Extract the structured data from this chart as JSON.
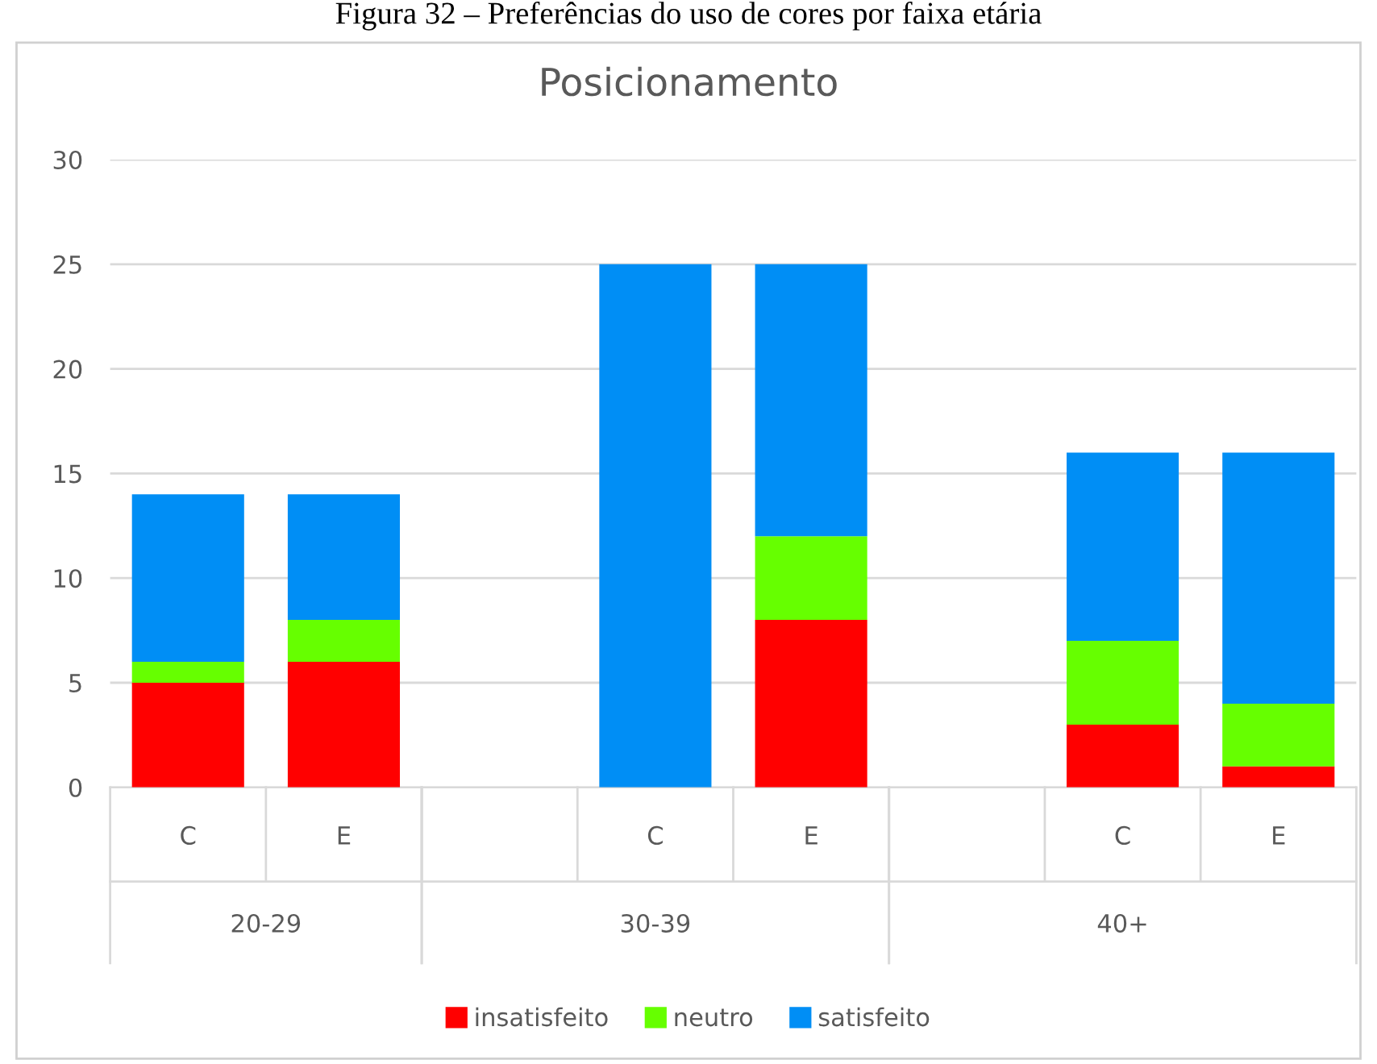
{
  "chart_data": {
    "type": "bar",
    "title": "Posicionamento",
    "stacked": true,
    "categories": [
      "C",
      "E",
      null,
      "C",
      "E",
      null,
      "C",
      "E"
    ],
    "series": [
      {
        "name": "insatisfeito",
        "color": "#ff0000",
        "values": [
          5,
          6,
          null,
          0,
          8,
          null,
          3,
          1
        ]
      },
      {
        "name": "neutro",
        "color": "#66ff00",
        "values": [
          1,
          2,
          null,
          0,
          4,
          null,
          4,
          3
        ]
      },
      {
        "name": "satisfeito",
        "color": "#008ef5",
        "values": [
          8,
          6,
          null,
          25,
          13,
          null,
          9,
          12
        ]
      }
    ],
    "ylim": [
      0,
      30
    ],
    "yticks": [
      0,
      5,
      10,
      15,
      20,
      25,
      30
    ],
    "grid": "y",
    "legend": "bottom",
    "annotations": [
      "Figura 32 – Preferências do uso de cores por faixa etária",
      "20-29",
      "30-39",
      "40+"
    ]
  }
}
